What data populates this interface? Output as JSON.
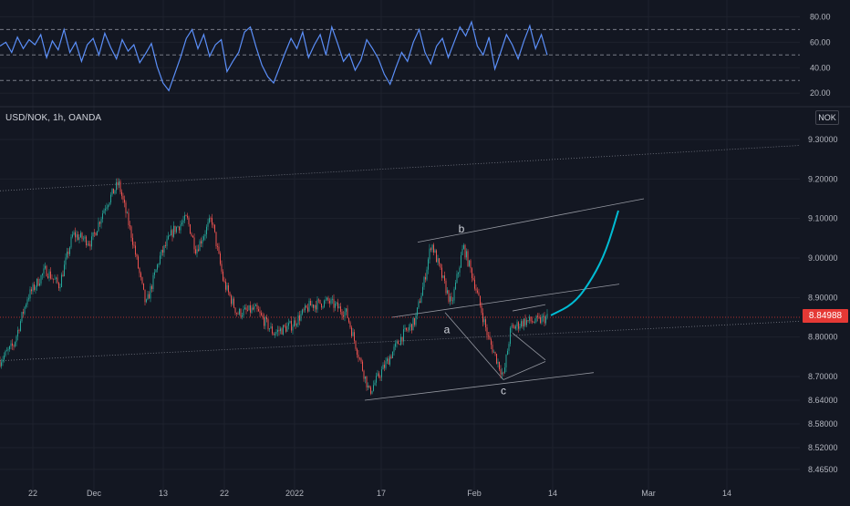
{
  "chart_data": [
    {
      "type": "line",
      "title": "",
      "panel": "RSI",
      "ylim": [
        13,
        86
      ],
      "y_ticks": [
        "80.00",
        "60.00",
        "40.00",
        "20.00"
      ],
      "y_tick_values": [
        80,
        60,
        40,
        20
      ],
      "guide_levels": [
        70,
        50,
        30
      ],
      "series": [
        {
          "color": "#5b8ff9",
          "values": [
            57,
            60,
            52,
            64,
            55,
            62,
            58,
            66,
            48,
            61,
            54,
            70,
            52,
            60,
            45,
            58,
            63,
            50,
            67,
            56,
            47,
            62,
            53,
            58,
            44,
            51,
            59,
            41,
            28,
            22,
            35,
            48,
            63,
            70,
            55,
            66,
            49,
            58,
            62,
            37,
            45,
            52,
            68,
            72,
            56,
            42,
            33,
            28,
            40,
            52,
            63,
            55,
            68,
            48,
            58,
            66,
            50,
            72,
            59,
            45,
            51,
            38,
            46,
            62,
            55,
            47,
            35,
            27,
            40,
            52,
            45,
            60,
            70,
            52,
            43,
            57,
            63,
            48,
            60,
            72,
            65,
            76,
            57,
            50,
            64,
            39,
            52,
            66,
            58,
            47,
            61,
            73,
            55,
            66,
            50
          ]
        }
      ]
    },
    {
      "type": "candlestick",
      "title": "USD/NOK, 1h, OANDA",
      "ylim": [
        8.43,
        9.33
      ],
      "y_ticks": [
        "9.30000",
        "9.20000",
        "9.10000",
        "9.00000",
        "8.90000",
        "8.80000",
        "8.70000",
        "8.64000",
        "8.58000",
        "8.52000",
        "8.46500"
      ],
      "y_tick_values": [
        9.3,
        9.2,
        9.1,
        9.0,
        8.9,
        8.8,
        8.7,
        8.64,
        8.58,
        8.52,
        8.465
      ],
      "x_ticks": [
        "22",
        "Dec",
        "13",
        "22",
        "2022",
        "17",
        "Feb",
        "14",
        "Mar",
        "14"
      ],
      "last_price": "8.84988",
      "last_price_value": 8.84988,
      "currency_badge": "NOK",
      "wave_labels": [
        "b",
        "a",
        "c"
      ],
      "path_anchors": [
        {
          "x": 0,
          "y": 8.74
        },
        {
          "x": 15,
          "y": 8.78
        },
        {
          "x": 30,
          "y": 8.9
        },
        {
          "x": 50,
          "y": 8.97
        },
        {
          "x": 65,
          "y": 8.93
        },
        {
          "x": 80,
          "y": 9.06
        },
        {
          "x": 100,
          "y": 9.04
        },
        {
          "x": 115,
          "y": 9.13
        },
        {
          "x": 130,
          "y": 9.19
        },
        {
          "x": 145,
          "y": 9.05
        },
        {
          "x": 160,
          "y": 8.88
        },
        {
          "x": 175,
          "y": 9.0
        },
        {
          "x": 190,
          "y": 9.07
        },
        {
          "x": 205,
          "y": 9.1
        },
        {
          "x": 215,
          "y": 9.02
        },
        {
          "x": 232,
          "y": 9.1
        },
        {
          "x": 245,
          "y": 8.94
        },
        {
          "x": 260,
          "y": 8.86
        },
        {
          "x": 280,
          "y": 8.87
        },
        {
          "x": 300,
          "y": 8.81
        },
        {
          "x": 320,
          "y": 8.83
        },
        {
          "x": 340,
          "y": 8.88
        },
        {
          "x": 360,
          "y": 8.89
        },
        {
          "x": 380,
          "y": 8.86
        },
        {
          "x": 395,
          "y": 8.74
        },
        {
          "x": 405,
          "y": 8.66
        },
        {
          "x": 420,
          "y": 8.72
        },
        {
          "x": 440,
          "y": 8.8
        },
        {
          "x": 455,
          "y": 8.84
        },
        {
          "x": 465,
          "y": 8.94
        },
        {
          "x": 473,
          "y": 9.04
        },
        {
          "x": 485,
          "y": 8.95
        },
        {
          "x": 495,
          "y": 8.88
        },
        {
          "x": 508,
          "y": 9.03
        },
        {
          "x": 520,
          "y": 8.94
        },
        {
          "x": 535,
          "y": 8.8
        },
        {
          "x": 552,
          "y": 8.7
        },
        {
          "x": 560,
          "y": 8.82
        },
        {
          "x": 575,
          "y": 8.84
        },
        {
          "x": 590,
          "y": 8.84
        },
        {
          "x": 600,
          "y": 8.85
        }
      ],
      "forecast": [
        {
          "x": 604,
          "y": 8.855
        },
        {
          "x": 630,
          "y": 8.885
        },
        {
          "x": 650,
          "y": 8.95
        },
        {
          "x": 665,
          "y": 9.02
        },
        {
          "x": 678,
          "y": 9.12
        }
      ]
    }
  ],
  "colors": {
    "background": "#131722",
    "grid": "#1e222d",
    "up": "#26a69a",
    "down": "#ef5350",
    "rsi_line": "#5b8ff9",
    "forecast": "#00bcd4",
    "price_badge": "#e53935",
    "axis_text": "#b2b5be"
  }
}
